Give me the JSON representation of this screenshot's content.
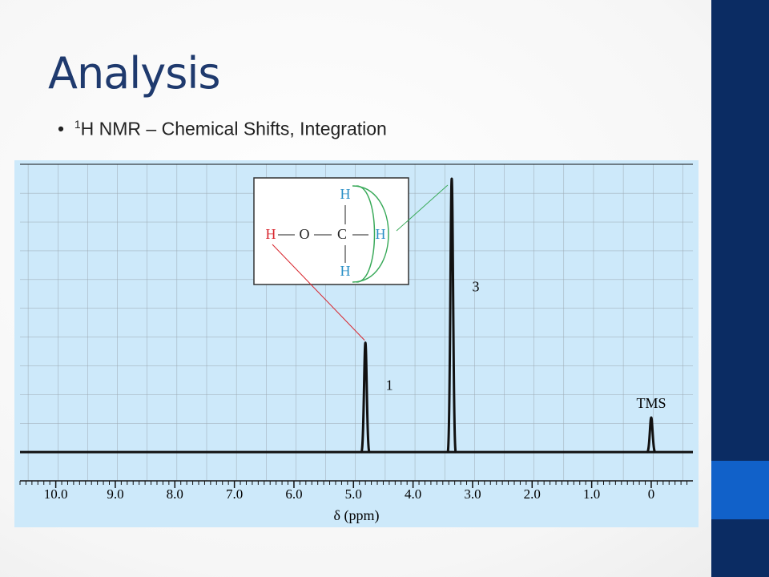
{
  "slide": {
    "title": "Analysis",
    "bullet_sup": "1",
    "bullet": "H NMR – Chemical Shifts, Integration"
  },
  "structure": {
    "top_h": "H",
    "left_h": "H",
    "o": "O",
    "c": "C",
    "right_h": "H",
    "bottom_h": "H"
  },
  "chart_data": {
    "type": "spectrum",
    "xlabel": "δ (ppm)",
    "x": [
      4.8,
      3.35,
      0
    ],
    "values": [
      3.8,
      9.5,
      1.2
    ],
    "peak_labels": [
      "1",
      "3",
      "TMS"
    ],
    "color": "#111111",
    "xlim": [
      10.6,
      -0.7
    ],
    "ylim": [
      -1,
      10
    ],
    "xticks": [
      {
        "value": 10,
        "label": "10.0"
      },
      {
        "value": 9,
        "label": "9.0"
      },
      {
        "value": 8,
        "label": "8.0"
      },
      {
        "value": 7,
        "label": "7.0"
      },
      {
        "value": 6,
        "label": "6.0"
      },
      {
        "value": 5,
        "label": "5.0"
      },
      {
        "value": 4,
        "label": "4.0"
      },
      {
        "value": 3,
        "label": "3.0"
      },
      {
        "value": 2,
        "label": "2.0"
      },
      {
        "value": 1,
        "label": "1.0"
      },
      0
    ],
    "grid": true
  }
}
